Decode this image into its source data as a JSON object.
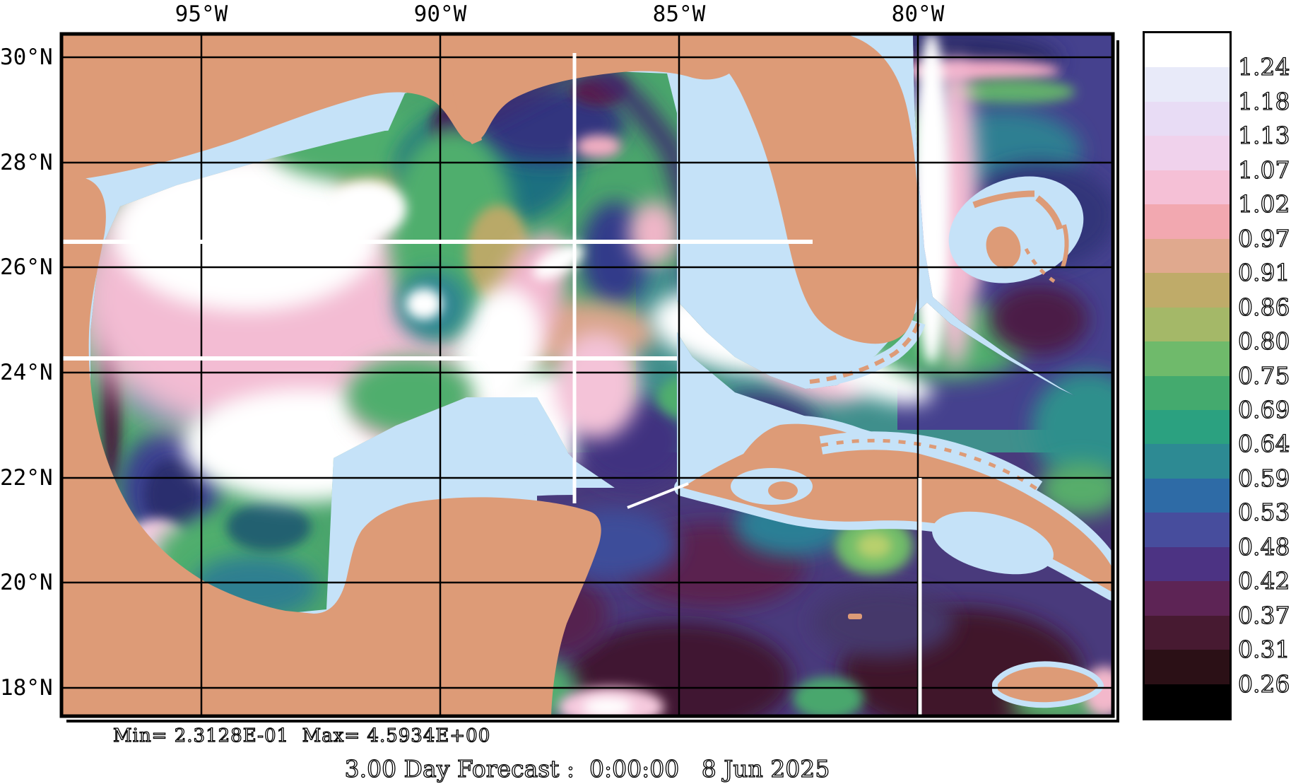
{
  "figure": {
    "stats": {
      "min_label": "Min= 2.3128E-01",
      "max_label": "Max= 4.5934E+00",
      "separator": "  "
    },
    "footer": "3.00 Day Forecast :  0:00:00   8 Jun 2025"
  },
  "axes": {
    "top_ticks": [
      "95°W",
      "90°W",
      "85°W",
      "80°W"
    ],
    "left_ticks": [
      "30°N",
      "28°N",
      "26°N",
      "24°N",
      "22°N",
      "20°N",
      "18°N"
    ]
  },
  "colorbar": {
    "tick_labels": [
      "1.24",
      "1.18",
      "1.13",
      "1.07",
      "1.02",
      "0.97",
      "0.91",
      "0.86",
      "0.80",
      "0.75",
      "0.69",
      "0.64",
      "0.59",
      "0.53",
      "0.48",
      "0.42",
      "0.37",
      "0.31",
      "0.26"
    ],
    "segment_colors": [
      "#ffffff",
      "#e8eaf9",
      "#e8dcf5",
      "#f0d2ec",
      "#f5c0d6",
      "#f2a8b0",
      "#e0a98e",
      "#bfab69",
      "#a4b868",
      "#6fba6b",
      "#44aa6e",
      "#2ba180",
      "#2d8a93",
      "#2e6ba6",
      "#474d9d",
      "#4c3383",
      "#5d2455",
      "#471a31",
      "#2b1016",
      "#000000"
    ]
  },
  "colors": {
    "land": "#dd9b77",
    "shelf_water": "#c5e2f8",
    "grid_line": "#000000",
    "track_line": "#ffffff",
    "background": "#ffffff"
  },
  "chart_data": {
    "type": "heatmap",
    "title": "3.00 Day Forecast :  0:00:00   8 Jun 2025",
    "region": "Gulf of Mexico and northwest Caribbean Sea ocean model field with land mask",
    "x_axis": {
      "label": "longitude",
      "tick_labels": [
        "95°W",
        "90°W",
        "85°W",
        "80°W"
      ],
      "range_deg_west": [
        98,
        76
      ]
    },
    "y_axis": {
      "label": "latitude",
      "tick_labels": [
        "30°N",
        "28°N",
        "26°N",
        "24°N",
        "22°N",
        "20°N",
        "18°N"
      ],
      "range_deg_north": [
        15.2,
        30.5
      ]
    },
    "colorbar_levels": [
      1.24,
      1.18,
      1.13,
      1.07,
      1.02,
      0.97,
      0.91,
      0.86,
      0.8,
      0.75,
      0.69,
      0.64,
      0.59,
      0.53,
      0.48,
      0.42,
      0.37,
      0.31,
      0.26
    ],
    "min_value": 0.23128,
    "max_value": 4.5934,
    "grid": true,
    "legend_position": "right-colorbar",
    "notable_features": [
      "high (white >1.24) field in western and central Gulf and along Loop Current / Yucatan Channel and Florida Straits / Gulf Stream",
      "low (dark purple <0.45) field over most of the Caribbean south of Cuba",
      "white transect lines across 26.5N and 24.3N, vertical line near 87.2W, vertical line near 80W south of Cuba"
    ]
  }
}
